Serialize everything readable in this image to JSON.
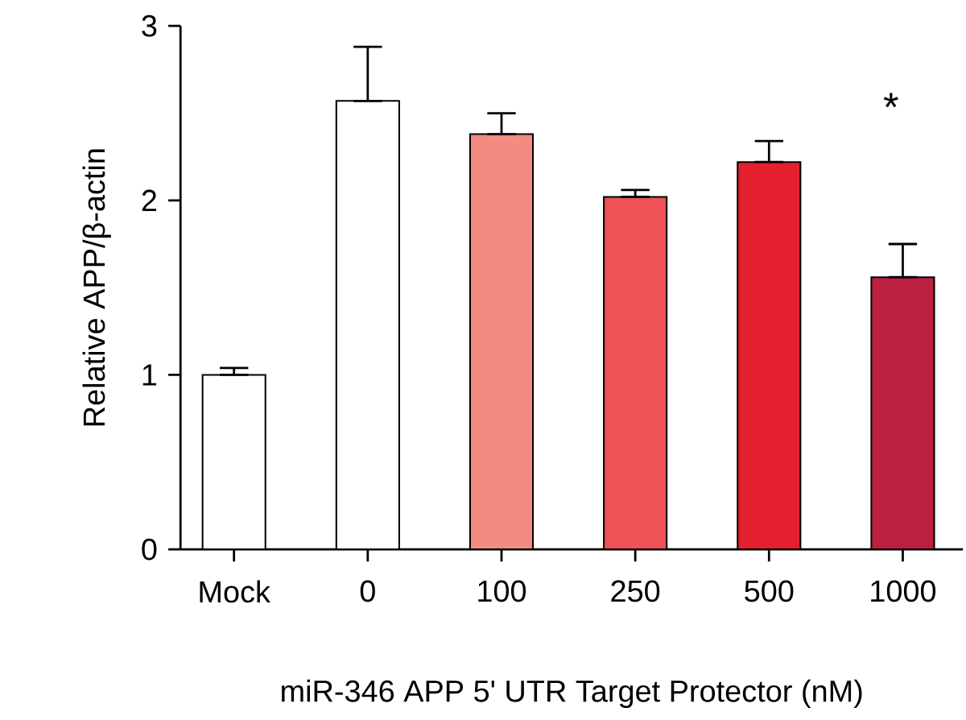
{
  "chart_data": {
    "type": "bar",
    "xlabel": "miR-346 APP 5' UTR Target Protector (nM)",
    "ylabel": "Relative APP/β-actin",
    "categories": [
      "Mock",
      "0",
      "100",
      "250",
      "500",
      "1000"
    ],
    "values": [
      1.0,
      2.57,
      2.38,
      2.02,
      2.22,
      1.56
    ],
    "errors": [
      [
        1.0,
        1.04
      ],
      [
        2.57,
        2.88
      ],
      [
        2.38,
        2.5
      ],
      [
        2.02,
        2.06
      ],
      [
        2.22,
        2.34
      ],
      [
        1.56,
        1.75
      ]
    ],
    "colors": [
      "#ffffff",
      "#ffffff",
      "#f28b82",
      "#ef5257",
      "#e41f2e",
      "#bc1f3f"
    ],
    "ylim": [
      0,
      3
    ],
    "yticks": [
      0,
      1,
      2,
      3
    ],
    "grid": false,
    "annotations": [
      "*"
    ]
  }
}
